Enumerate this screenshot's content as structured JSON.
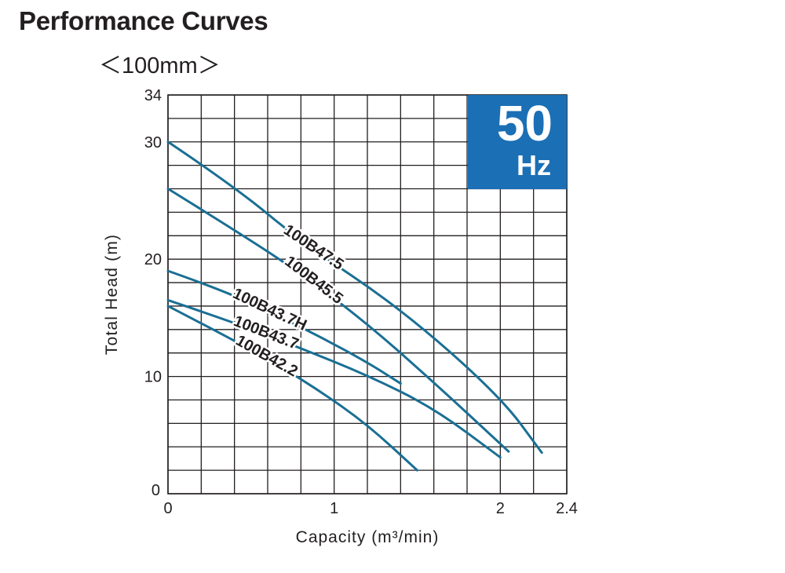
{
  "header": {
    "title": "Performance Curves",
    "subtitle": "＜100mm＞"
  },
  "badge": {
    "value": "50",
    "unit": "Hz",
    "color": "#1b6fb5"
  },
  "chart_data": {
    "type": "line",
    "xlabel": "Capacity (m³/min)",
    "ylabel": "Total Head (m)",
    "xlim": [
      0,
      2.4
    ],
    "ylim": [
      0,
      34
    ],
    "x_ticks": [
      0,
      1,
      2,
      2.4
    ],
    "x_tick_labels": [
      "0",
      "1",
      "2",
      "2.4"
    ],
    "y_ticks": [
      0,
      10,
      20,
      30,
      34
    ],
    "y_tick_labels": [
      "0",
      "10",
      "20",
      "30",
      "34"
    ],
    "grid": true,
    "line_color": "#1a6f94",
    "series": [
      {
        "name": "100B47.5",
        "x": [
          0,
          0.4,
          0.8,
          1.4,
          2.0,
          2.25
        ],
        "y": [
          30,
          26.2,
          21.5,
          15.8,
          8.3,
          3.5
        ]
      },
      {
        "name": "100B45.5",
        "x": [
          0,
          0.4,
          0.8,
          1.2,
          1.6,
          2.05
        ],
        "y": [
          26,
          22.5,
          18.8,
          14.5,
          9.5,
          3.6
        ]
      },
      {
        "name": "100B43.7H",
        "x": [
          0,
          0.3,
          0.6,
          0.9,
          1.2,
          1.4
        ],
        "y": [
          19,
          17.5,
          15.6,
          13.5,
          11.2,
          9.4
        ]
      },
      {
        "name": "100B43.7",
        "x": [
          0,
          0.4,
          0.8,
          1.2,
          1.6,
          2.0
        ],
        "y": [
          16.5,
          14.6,
          12.4,
          10.1,
          7.3,
          3.1
        ]
      },
      {
        "name": "100B42.2",
        "x": [
          0,
          0.3,
          0.6,
          0.9,
          1.2,
          1.5
        ],
        "y": [
          16,
          13.8,
          11.5,
          8.9,
          5.9,
          2.0
        ]
      }
    ]
  }
}
